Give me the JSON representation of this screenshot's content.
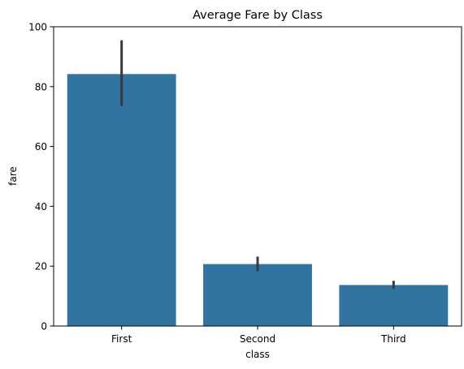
{
  "chart_data": {
    "type": "bar",
    "title": "Average Fare by Class",
    "xlabel": "class",
    "ylabel": "fare",
    "categories": [
      "First",
      "Second",
      "Third"
    ],
    "values": [
      84.2,
      20.7,
      13.7
    ],
    "error_bars": [
      {
        "low": 73.5,
        "high": 95.5
      },
      {
        "low": 18.3,
        "high": 23.2
      },
      {
        "low": 12.4,
        "high": 15.1
      }
    ],
    "ylim": [
      0,
      100
    ],
    "yticks": [
      0,
      20,
      40,
      60,
      80,
      100
    ],
    "grid": false,
    "bar_color": "#3274a1",
    "error_color": "#3a3a3a"
  }
}
